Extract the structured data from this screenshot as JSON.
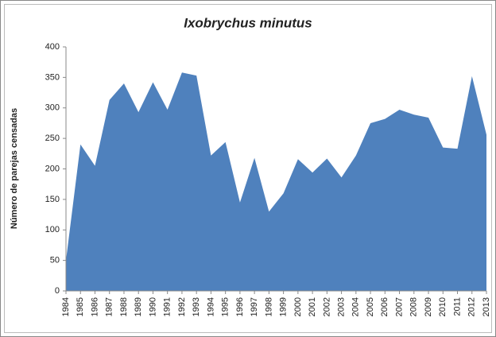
{
  "chart_data": {
    "type": "area",
    "title": "Ixobrychus minutus",
    "y_label": "Número de parejas censadas",
    "categories": [
      "1984",
      "1985",
      "1986",
      "1987",
      "1988",
      "1989",
      "1990",
      "1991",
      "1992",
      "1993",
      "1994",
      "1995",
      "1996",
      "1997",
      "1998",
      "1999",
      "2000",
      "2001",
      "2002",
      "2003",
      "2004",
      "2005",
      "2006",
      "2007",
      "2008",
      "2009",
      "2010",
      "2011",
      "2012",
      "2013"
    ],
    "values": [
      50,
      240,
      205,
      313,
      340,
      293,
      342,
      297,
      358,
      353,
      222,
      244,
      145,
      218,
      130,
      160,
      216,
      194,
      217,
      186,
      222,
      275,
      282,
      297,
      289,
      284,
      235,
      233,
      352,
      256
    ],
    "color": "#4f81bd",
    "ylim": [
      0,
      400
    ],
    "yticks": [
      0,
      50,
      100,
      150,
      200,
      250,
      300,
      350,
      400
    ],
    "grid": false
  }
}
